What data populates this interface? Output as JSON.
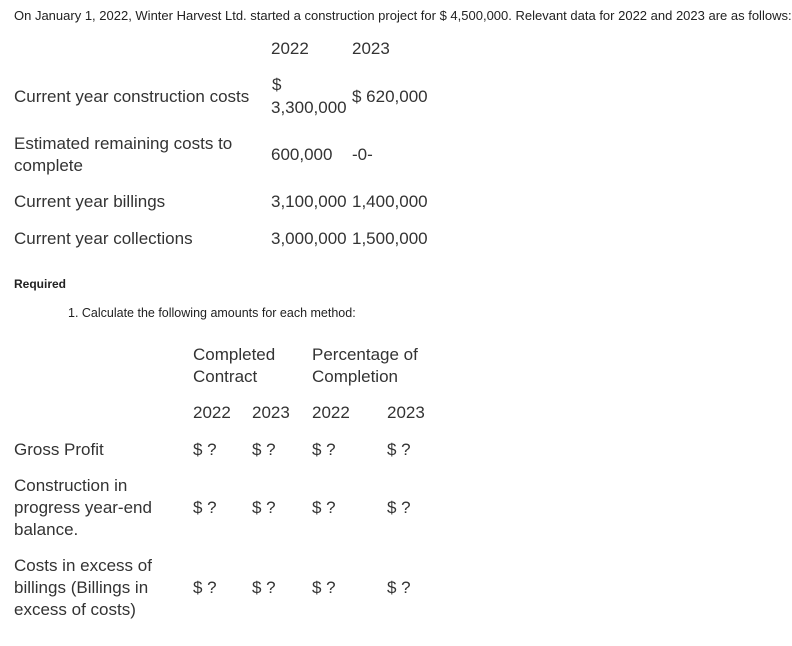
{
  "intro_text": "On January 1, 2022, Winter Harvest Ltd. started a construction project for $ 4,500,000. Relevant data for 2022 and 2023 are as follows:",
  "data_table": {
    "year_headers": [
      "2022",
      "2023"
    ],
    "rows": [
      {
        "label": "Current year construction costs",
        "v2022_symbol": "$",
        "v2022": "3,300,000",
        "v2023": "$ 620,000"
      },
      {
        "label_line1": "Estimated remaining costs to",
        "label_line2": "complete",
        "v2022": "600,000",
        "v2023": "-0-"
      },
      {
        "label": "Current year billings",
        "v2022": "3,100,000",
        "v2023": "1,400,000"
      },
      {
        "label": "Current year collections",
        "v2022": "3,000,000",
        "v2023": "1,500,000"
      }
    ]
  },
  "required_label": "Required",
  "question_1": "1. Calculate the following amounts for each method:",
  "answer_table": {
    "method_completed_line1": "Completed",
    "method_completed_line2": "Contract",
    "method_percentage_line1": "Percentage of",
    "method_percentage_line2": "Completion",
    "years": [
      "2022",
      "2023",
      "2022",
      "2023"
    ],
    "rows": [
      {
        "label_lines": [
          "Gross Profit"
        ],
        "cells": [
          "$ ?",
          "$ ?",
          "$ ?",
          "$ ?"
        ]
      },
      {
        "label_lines": [
          "Construction in",
          "progress year-end",
          "balance."
        ],
        "cells": [
          "$ ?",
          "$ ?",
          "$ ?",
          "$ ?"
        ]
      },
      {
        "label_lines": [
          "Costs in excess of",
          "billings (Billings in",
          "excess of costs)"
        ],
        "cells": [
          "$ ?",
          "$ ?",
          "$ ?",
          "$ ?"
        ]
      }
    ]
  }
}
